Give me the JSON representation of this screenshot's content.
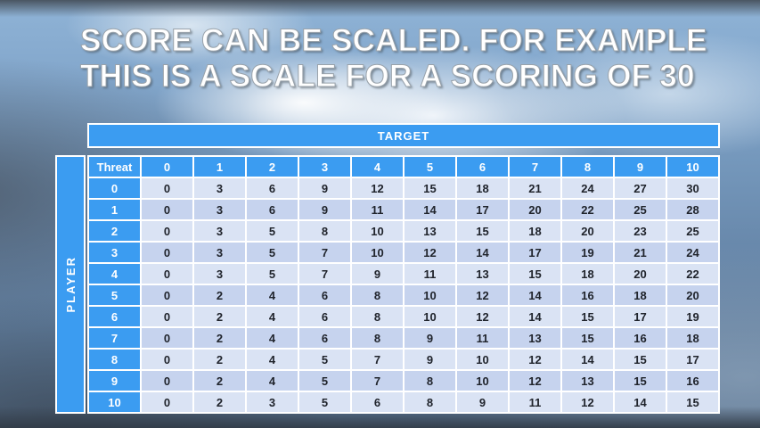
{
  "title": {
    "line1": "SCORE CAN BE SCALED. FOR EXAMPLE",
    "line2": "THIS IS A SCALE FOR A SCORING OF 30"
  },
  "table": {
    "target_label": "TARGET",
    "player_label": "PLAYER",
    "threat_label": "Threat",
    "column_headers": [
      "0",
      "1",
      "2",
      "3",
      "4",
      "5",
      "6",
      "7",
      "8",
      "9",
      "10"
    ],
    "rows": [
      {
        "header": "0",
        "values": [
          0,
          3,
          6,
          9,
          12,
          15,
          18,
          21,
          24,
          27,
          30
        ]
      },
      {
        "header": "1",
        "values": [
          0,
          3,
          6,
          9,
          11,
          14,
          17,
          20,
          22,
          25,
          28
        ]
      },
      {
        "header": "2",
        "values": [
          0,
          3,
          5,
          8,
          10,
          13,
          15,
          18,
          20,
          23,
          25
        ]
      },
      {
        "header": "3",
        "values": [
          0,
          3,
          5,
          7,
          10,
          12,
          14,
          17,
          19,
          21,
          24
        ]
      },
      {
        "header": "4",
        "values": [
          0,
          3,
          5,
          7,
          9,
          11,
          13,
          15,
          18,
          20,
          22
        ]
      },
      {
        "header": "5",
        "values": [
          0,
          2,
          4,
          6,
          8,
          10,
          12,
          14,
          16,
          18,
          20
        ]
      },
      {
        "header": "6",
        "values": [
          0,
          2,
          4,
          6,
          8,
          10,
          12,
          14,
          15,
          17,
          19
        ]
      },
      {
        "header": "7",
        "values": [
          0,
          2,
          4,
          6,
          8,
          9,
          11,
          13,
          15,
          16,
          18
        ]
      },
      {
        "header": "8",
        "values": [
          0,
          2,
          4,
          5,
          7,
          9,
          10,
          12,
          14,
          15,
          17
        ]
      },
      {
        "header": "9",
        "values": [
          0,
          2,
          4,
          5,
          7,
          8,
          10,
          12,
          13,
          15,
          16
        ]
      },
      {
        "header": "10",
        "values": [
          0,
          2,
          3,
          5,
          6,
          8,
          9,
          11,
          12,
          14,
          15
        ]
      }
    ]
  },
  "colors": {
    "header_blue": "#3B9CF1",
    "row_light": "#DAE3F4",
    "row_dark": "#C6D3EE"
  }
}
